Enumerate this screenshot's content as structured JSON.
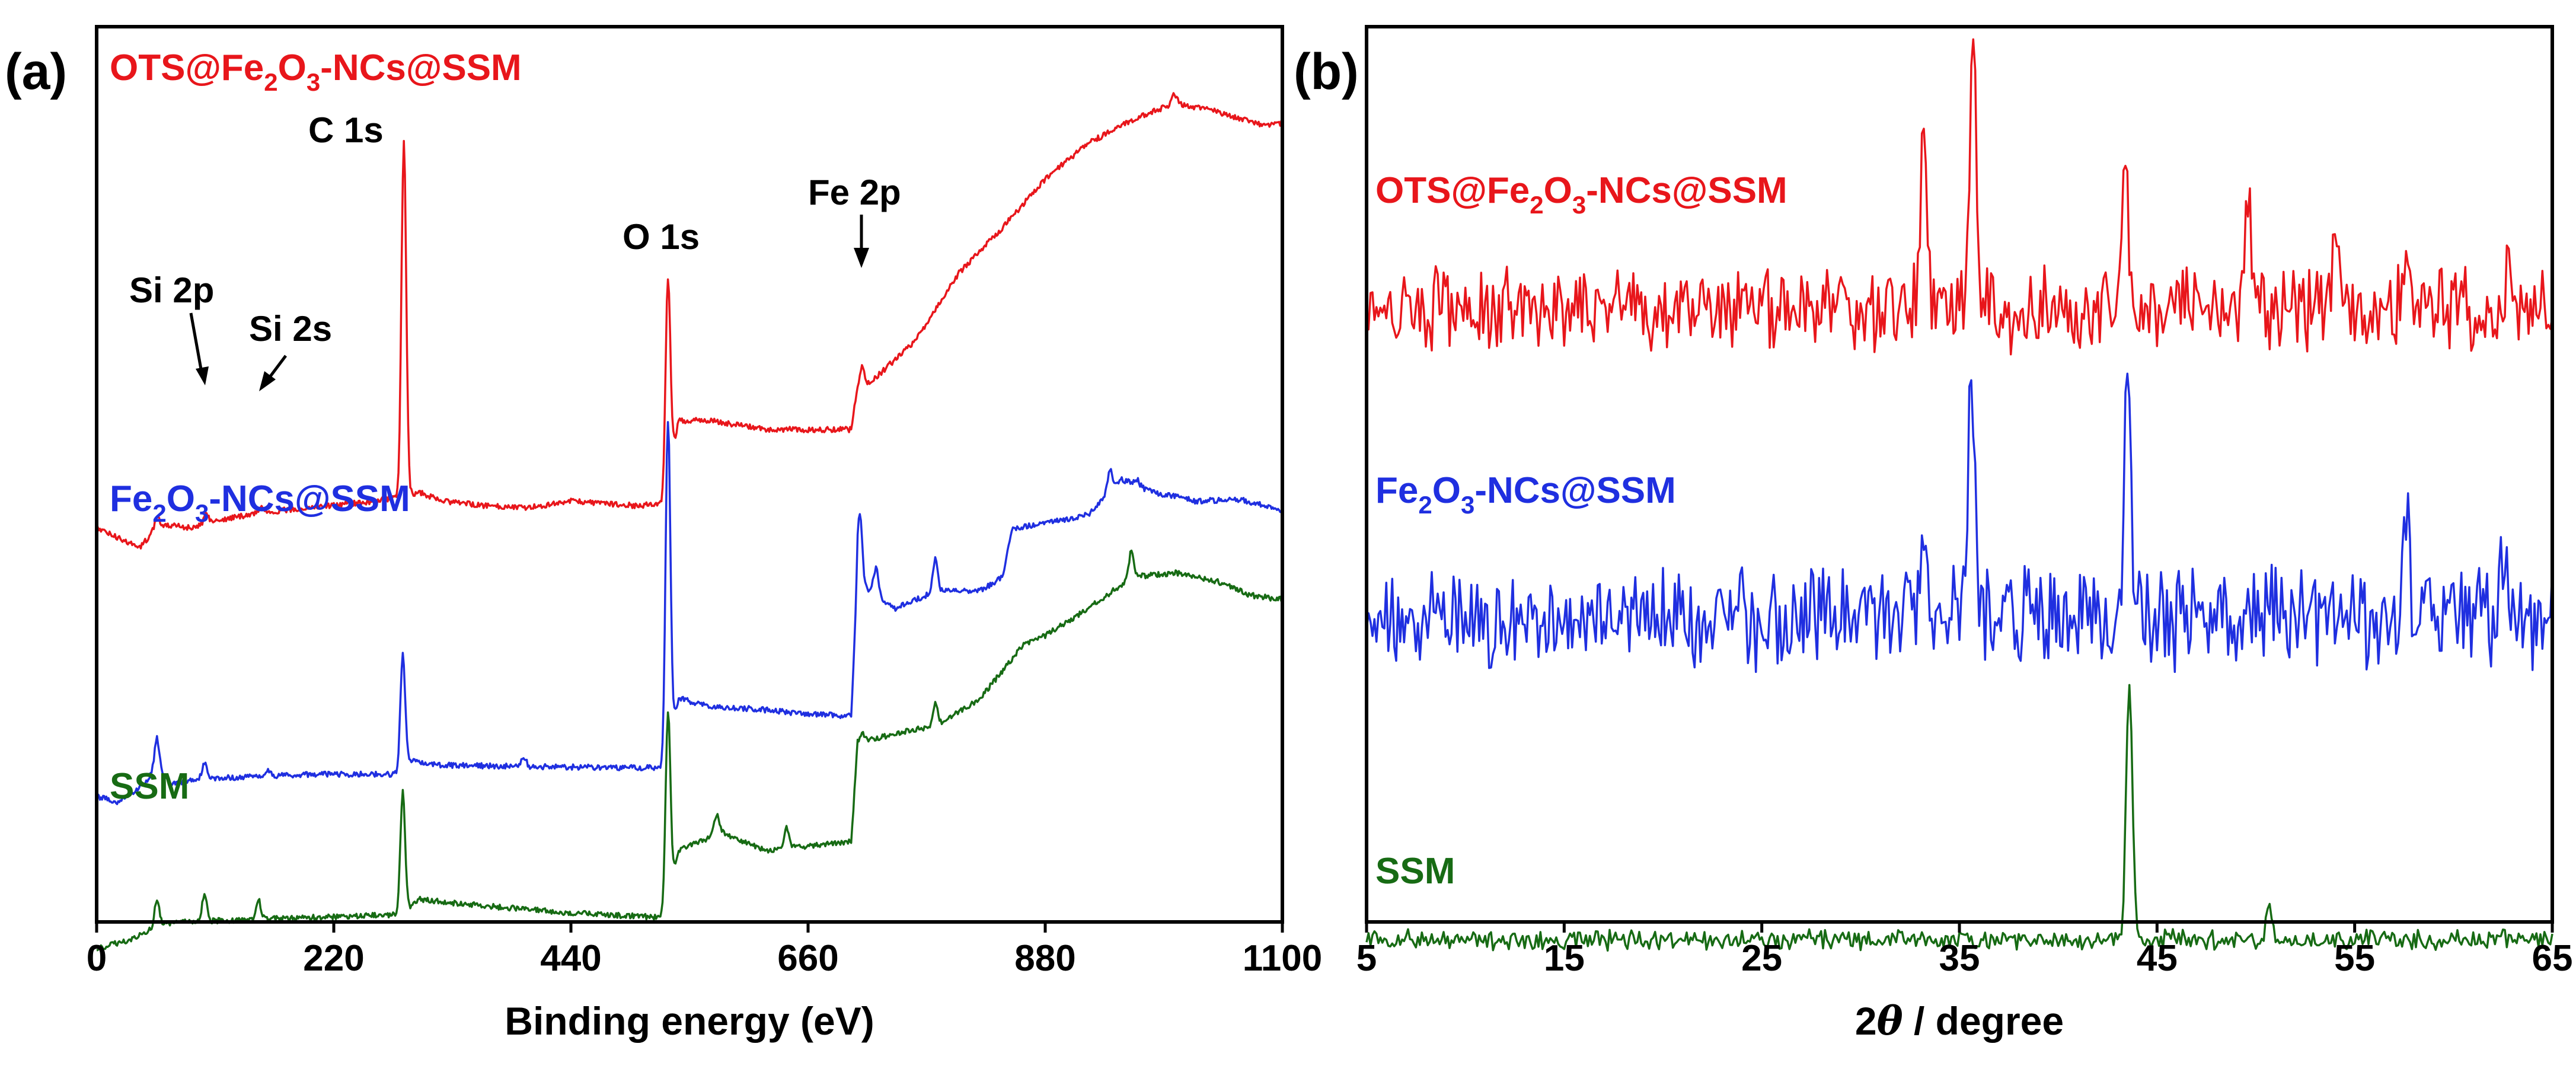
{
  "colors": {
    "red": "#e8161b",
    "blue": "#1f2fe0",
    "green": "#176b14",
    "axis": "#000000"
  },
  "chart_data": [
    {
      "panel": "(a)",
      "type": "line",
      "xlabel": "Binding energy (eV)",
      "ylabel": "",
      "xlim": [
        0,
        1100
      ],
      "xticks": [
        "0",
        "220",
        "440",
        "660",
        "880",
        "1100"
      ],
      "series": [
        {
          "name": "OTS@Fe2O3-NCs@SSM",
          "label": {
            "pre": "OTS@Fe",
            "sub1": "2",
            "mid": "O",
            "sub2": "3",
            "post": "-NCs@SSM"
          },
          "color": "#e8161b",
          "anchors": [
            [
              0,
              0.56
            ],
            [
              40,
              0.582
            ],
            [
              55,
              0.56
            ],
            [
              70,
              0.557
            ],
            [
              90,
              0.56
            ],
            [
              110,
              0.552
            ],
            [
              150,
              0.543
            ],
            [
              200,
              0.537
            ],
            [
              260,
              0.53
            ],
            [
              300,
              0.52
            ],
            [
              320,
              0.53
            ],
            [
              360,
              0.535
            ],
            [
              400,
              0.537
            ],
            [
              440,
              0.53
            ],
            [
              500,
              0.535
            ],
            [
              525,
              0.533
            ],
            [
              540,
              0.44
            ],
            [
              570,
              0.44
            ],
            [
              620,
              0.45
            ],
            [
              660,
              0.45
            ],
            [
              700,
              0.45
            ],
            [
              705,
              0.41
            ],
            [
              720,
              0.395
            ],
            [
              760,
              0.35
            ],
            [
              800,
              0.275
            ],
            [
              840,
              0.225
            ],
            [
              880,
              0.17
            ],
            [
              920,
              0.13
            ],
            [
              960,
              0.105
            ],
            [
              1000,
              0.085
            ],
            [
              1040,
              0.095
            ],
            [
              1080,
              0.11
            ],
            [
              1100,
              0.108
            ]
          ],
          "peaks": [
            [
              56,
              0.548
            ],
            [
              102,
              0.544
            ],
            [
              153,
              0.536
            ],
            [
              285,
              0.13
            ],
            [
              530,
              0.28
            ],
            [
              710,
              0.38
            ],
            [
              1000,
              0.075
            ]
          ]
        },
        {
          "name": "Fe2O3-NCs@SSM",
          "label": {
            "pre": "Fe",
            "sub1": "2",
            "mid": "O",
            "sub2": "3",
            "post": "-NCs@SSM"
          },
          "color": "#1f2fe0",
          "anchors": [
            [
              0,
              0.86
            ],
            [
              20,
              0.866
            ],
            [
              40,
              0.85
            ],
            [
              55,
              0.83
            ],
            [
              70,
              0.845
            ],
            [
              100,
              0.84
            ],
            [
              200,
              0.835
            ],
            [
              280,
              0.835
            ],
            [
              290,
              0.82
            ],
            [
              320,
              0.825
            ],
            [
              440,
              0.827
            ],
            [
              525,
              0.828
            ],
            [
              540,
              0.75
            ],
            [
              570,
              0.76
            ],
            [
              610,
              0.762
            ],
            [
              660,
              0.768
            ],
            [
              700,
              0.77
            ],
            [
              706,
              0.62
            ],
            [
              740,
              0.65
            ],
            [
              780,
              0.63
            ],
            [
              820,
              0.63
            ],
            [
              840,
              0.615
            ],
            [
              850,
              0.56
            ],
            [
              880,
              0.555
            ],
            [
              920,
              0.545
            ],
            [
              950,
              0.505
            ],
            [
              980,
              0.52
            ],
            [
              1020,
              0.53
            ],
            [
              1060,
              0.528
            ],
            [
              1100,
              0.54
            ]
          ],
          "peaks": [
            [
              56,
              0.795
            ],
            [
              100,
              0.822
            ],
            [
              160,
              0.83
            ],
            [
              284,
              0.7
            ],
            [
              396,
              0.815
            ],
            [
              530,
              0.44
            ],
            [
              708,
              0.545
            ],
            [
              723,
              0.605
            ],
            [
              778,
              0.595
            ],
            [
              940,
              0.495
            ],
            [
              965,
              0.505
            ]
          ]
        },
        {
          "name": "SSM",
          "label": {
            "pre": "SSM",
            "sub1": "",
            "mid": "",
            "sub2": "",
            "post": ""
          },
          "color": "#176b14",
          "anchors": [
            [
              0,
              1.03
            ],
            [
              30,
              1.02
            ],
            [
              55,
              1.005
            ],
            [
              80,
              1.0
            ],
            [
              200,
              0.995
            ],
            [
              280,
              0.992
            ],
            [
              300,
              0.975
            ],
            [
              340,
              0.98
            ],
            [
              440,
              0.99
            ],
            [
              525,
              0.995
            ],
            [
              540,
              0.92
            ],
            [
              580,
              0.9
            ],
            [
              620,
              0.92
            ],
            [
              660,
              0.915
            ],
            [
              700,
              0.91
            ],
            [
              706,
              0.8
            ],
            [
              740,
              0.79
            ],
            [
              780,
              0.78
            ],
            [
              820,
              0.75
            ],
            [
              840,
              0.72
            ],
            [
              860,
              0.69
            ],
            [
              880,
              0.68
            ],
            [
              920,
              0.65
            ],
            [
              960,
              0.615
            ],
            [
              1000,
              0.61
            ],
            [
              1040,
              0.62
            ],
            [
              1070,
              0.635
            ],
            [
              1100,
              0.64
            ]
          ],
          "peaks": [
            [
              56,
              0.975
            ],
            [
              100,
              0.97
            ],
            [
              150,
              0.975
            ],
            [
              284,
              0.855
            ],
            [
              530,
              0.765
            ],
            [
              575,
              0.88
            ],
            [
              640,
              0.895
            ],
            [
              710,
              0.79
            ],
            [
              778,
              0.755
            ],
            [
              960,
              0.585
            ]
          ]
        }
      ],
      "annotations": [
        {
          "text": "C 1s",
          "x": 280
        },
        {
          "text": "O 1s",
          "x": 530
        },
        {
          "text": "Fe 2p",
          "x": 710
        },
        {
          "text": "Si 2p",
          "x": 100
        },
        {
          "text": "Si 2s",
          "x": 153
        }
      ]
    },
    {
      "panel": "(b)",
      "type": "line",
      "xlabel": "2θ / degree",
      "xlabel_parts": {
        "pre": "2",
        "theta": "θ",
        "post": " / degree"
      },
      "ylabel": "",
      "xlim": [
        5,
        65
      ],
      "xticks": [
        "5",
        "15",
        "25",
        "35",
        "45",
        "55",
        "65"
      ],
      "series": [
        {
          "name": "OTS@Fe2O3-NCs@SSM",
          "label": {
            "pre": "OTS@Fe",
            "sub1": "2",
            "mid": "O",
            "sub2": "3",
            "post": "-NCs@SSM"
          },
          "color": "#e8161b",
          "baseline": 0.315,
          "noise": 0.075,
          "peaks": [
            [
              33.2,
              0.09
            ],
            [
              35.7,
              0.01
            ],
            [
              43.4,
              0.165
            ],
            [
              49.6,
              0.18
            ],
            [
              54.1,
              0.23
            ],
            [
              57.6,
              0.235
            ],
            [
              62.8,
              0.265
            ]
          ]
        },
        {
          "name": "Fe2O3-NCs@SSM",
          "label": {
            "pre": "Fe",
            "sub1": "2",
            "mid": "O",
            "sub2": "3",
            "post": "-NCs@SSM"
          },
          "color": "#1f2fe0",
          "baseline": 0.66,
          "noise": 0.09,
          "peaks": [
            [
              33.2,
              0.56
            ],
            [
              35.6,
              0.39
            ],
            [
              43.5,
              0.415
            ],
            [
              57.6,
              0.56
            ],
            [
              62.5,
              0.58
            ]
          ]
        },
        {
          "name": "SSM",
          "label": {
            "pre": "SSM",
            "sub1": "",
            "mid": "",
            "sub2": "",
            "post": ""
          },
          "color": "#176b14",
          "baseline": 1.02,
          "noise": 0.018,
          "peaks": [
            [
              43.6,
              0.735
            ],
            [
              50.7,
              0.985
            ]
          ]
        }
      ]
    }
  ]
}
